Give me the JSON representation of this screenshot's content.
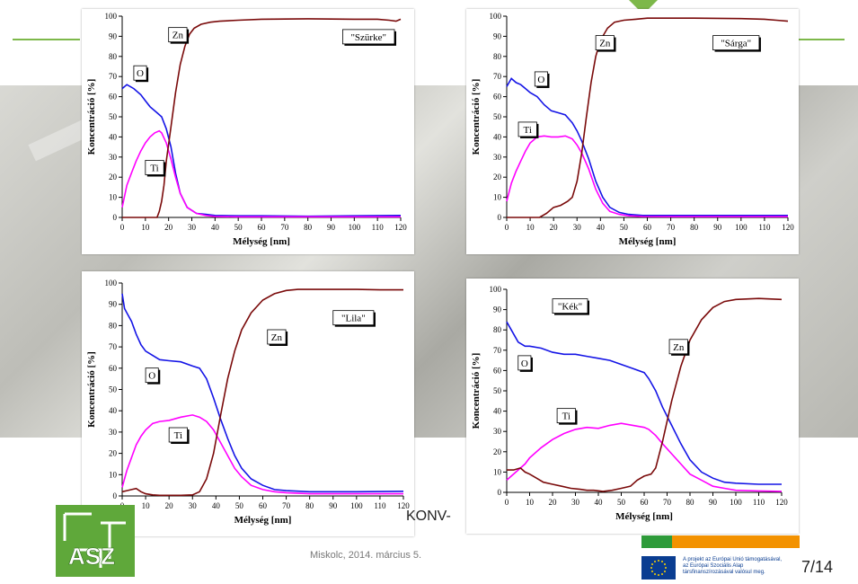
{
  "footer": {
    "date": "Miskolc, 2014. március 5.",
    "project_fragment": "KONV-",
    "page": "7/14"
  },
  "eu_notice": {
    "lines": [
      "A projekt az Európai Unió támogatásával,",
      "az Európai Szociális Alap",
      "társfinanszírozásával valósul meg."
    ]
  },
  "colors": {
    "O": "#1414e6",
    "Ti": "#ff00ff",
    "Zn": "#7a0a0a",
    "accent_green": "#7db84a"
  },
  "chart_data": [
    {
      "type": "line",
      "annotation": "\"Szürke\"",
      "xlabel": "Mélység [nm]",
      "ylabel": "Koncentráció [%]",
      "xlim": [
        0,
        120
      ],
      "ylim": [
        0,
        100
      ],
      "xticks": [
        0,
        10,
        20,
        30,
        40,
        50,
        60,
        70,
        80,
        90,
        100,
        110,
        120
      ],
      "yticks": [
        0,
        10,
        20,
        30,
        40,
        50,
        60,
        70,
        80,
        90,
        100
      ],
      "series": [
        {
          "name": "O",
          "x": [
            0,
            2,
            5,
            8,
            10,
            12,
            15,
            17,
            19,
            21,
            23,
            25,
            28,
            32,
            36,
            40,
            50,
            60,
            80,
            100,
            120
          ],
          "values": [
            64,
            66,
            64,
            61,
            58,
            55,
            52,
            50,
            44,
            35,
            22,
            12,
            5,
            2,
            1.5,
            1,
            0.8,
            0.8,
            0.6,
            0.8,
            1
          ]
        },
        {
          "name": "Ti",
          "x": [
            0,
            2,
            4,
            6,
            8,
            10,
            12,
            14,
            16,
            17,
            19,
            21,
            23,
            25,
            28,
            32,
            36,
            40,
            50,
            60,
            80,
            100,
            120
          ],
          "values": [
            5,
            16,
            22,
            28,
            33,
            37,
            40,
            42,
            43,
            42,
            37,
            29,
            20,
            12,
            5,
            2,
            1,
            0.5,
            0.3,
            0.3,
            0.3,
            0.3,
            0.3
          ]
        },
        {
          "name": "Zn",
          "x": [
            0,
            10,
            15,
            16,
            17,
            18,
            19,
            21,
            23,
            25,
            27,
            29,
            31,
            34,
            38,
            42,
            50,
            60,
            80,
            100,
            110,
            115,
            118,
            120
          ],
          "values": [
            0,
            0,
            0,
            3,
            8,
            16,
            28,
            45,
            62,
            76,
            85,
            91,
            94,
            96,
            97,
            97.5,
            98,
            98.5,
            98.7,
            98.5,
            98.5,
            98,
            97.5,
            98.5
          ]
        }
      ],
      "labels": [
        "O",
        "Ti",
        "Zn"
      ]
    },
    {
      "type": "line",
      "annotation": "\"Sárga\"",
      "xlabel": "Mélység [nm]",
      "ylabel": "Koncentráció [%]",
      "xlim": [
        0,
        120
      ],
      "ylim": [
        0,
        100
      ],
      "xticks": [
        0,
        10,
        20,
        30,
        40,
        50,
        60,
        70,
        80,
        90,
        100,
        110,
        120
      ],
      "yticks": [
        0,
        10,
        20,
        30,
        40,
        50,
        60,
        70,
        80,
        90,
        100
      ],
      "series": [
        {
          "name": "O",
          "x": [
            0,
            2,
            4,
            6,
            8,
            10,
            13,
            16,
            19,
            22,
            25,
            28,
            30,
            32,
            35,
            38,
            41,
            44,
            48,
            52,
            58,
            70,
            90,
            120
          ],
          "values": [
            65,
            69,
            67,
            66,
            64,
            62,
            60,
            56,
            53,
            52,
            51,
            47,
            43,
            38,
            29,
            18,
            10,
            5,
            2.5,
            1.5,
            1,
            1,
            1,
            1
          ]
        },
        {
          "name": "Ti",
          "x": [
            0,
            2,
            4,
            6,
            8,
            10,
            13,
            16,
            19,
            22,
            25,
            28,
            30,
            32,
            35,
            38,
            41,
            44,
            48,
            52,
            58,
            70,
            90,
            120
          ],
          "values": [
            8,
            17,
            23,
            28,
            33,
            37,
            40,
            40.5,
            40,
            40,
            40.5,
            39,
            36,
            32,
            24,
            14,
            7,
            3,
            1.5,
            0.8,
            0.5,
            0.4,
            0.4,
            0.4
          ]
        },
        {
          "name": "Zn",
          "x": [
            0,
            10,
            14,
            17,
            20,
            23,
            26,
            28,
            30,
            32,
            34,
            36,
            38,
            40,
            43,
            46,
            50,
            55,
            60,
            80,
            100,
            110,
            115,
            120
          ],
          "values": [
            0,
            0,
            0,
            2,
            5,
            6,
            8,
            10,
            18,
            32,
            50,
            67,
            80,
            88,
            94,
            97,
            98,
            98.5,
            99,
            99,
            98.8,
            98.5,
            98,
            97.5
          ]
        }
      ],
      "labels": [
        "O",
        "Ti",
        "Zn"
      ]
    },
    {
      "type": "line",
      "annotation": "\"Lila\"",
      "xlabel": "Mélység [nm]",
      "ylabel": "Koncentráció [%]",
      "xlim": [
        0,
        120
      ],
      "ylim": [
        0,
        100
      ],
      "xticks": [
        0,
        10,
        20,
        30,
        40,
        50,
        60,
        70,
        80,
        90,
        100,
        110,
        120
      ],
      "yticks": [
        0,
        10,
        20,
        30,
        40,
        50,
        60,
        70,
        80,
        90,
        100
      ],
      "series": [
        {
          "name": "O",
          "x": [
            0,
            1,
            2,
            4,
            6,
            8,
            10,
            13,
            16,
            20,
            25,
            30,
            33,
            36,
            39,
            42,
            45,
            48,
            51,
            55,
            60,
            65,
            70,
            80,
            100,
            120
          ],
          "values": [
            95,
            88,
            86,
            82,
            76,
            71,
            68,
            66,
            64,
            63.5,
            63,
            61,
            60,
            55,
            46,
            36,
            27,
            19,
            13,
            8,
            5,
            3,
            2.5,
            2,
            2,
            2.2
          ]
        },
        {
          "name": "Ti",
          "x": [
            0,
            1,
            2,
            4,
            6,
            8,
            10,
            13,
            16,
            20,
            25,
            30,
            33,
            36,
            39,
            42,
            45,
            48,
            51,
            55,
            60,
            65,
            70,
            80,
            100,
            120
          ],
          "values": [
            4,
            8,
            12,
            18,
            24,
            28,
            31,
            34,
            35,
            35.5,
            37,
            38,
            37,
            35,
            31,
            25,
            19,
            13,
            9,
            5,
            3,
            2,
            1.5,
            1,
            1,
            1
          ]
        },
        {
          "name": "Zn",
          "x": [
            0,
            2,
            4,
            6,
            8,
            10,
            13,
            16,
            20,
            25,
            30,
            33,
            36,
            39,
            42,
            45,
            48,
            51,
            55,
            60,
            65,
            70,
            75,
            80,
            90,
            100,
            110,
            120
          ],
          "values": [
            2,
            2.5,
            3,
            3.5,
            2,
            1,
            0.5,
            0.3,
            0.3,
            0.3,
            0.5,
            2,
            8,
            20,
            38,
            55,
            68,
            78,
            86,
            92,
            95,
            96.5,
            97,
            97,
            97,
            97,
            96.8,
            96.8
          ]
        }
      ],
      "labels": [
        "O",
        "Ti",
        "Zn"
      ]
    },
    {
      "type": "line",
      "annotation": "\"Kék\"",
      "xlabel": "Mélység [nm]",
      "ylabel": "Koncentráció [%]",
      "xlim": [
        0,
        120
      ],
      "ylim": [
        0,
        100
      ],
      "xticks": [
        0,
        10,
        20,
        30,
        40,
        50,
        60,
        70,
        80,
        90,
        100,
        110,
        120
      ],
      "yticks": [
        0,
        10,
        20,
        30,
        40,
        50,
        60,
        70,
        80,
        90,
        100
      ],
      "series": [
        {
          "name": "O",
          "x": [
            0,
            2,
            5,
            8,
            10,
            15,
            20,
            25,
            30,
            35,
            40,
            45,
            50,
            55,
            60,
            62,
            65,
            68,
            72,
            76,
            80,
            85,
            90,
            95,
            100,
            110,
            120
          ],
          "values": [
            84,
            80,
            74,
            72,
            72,
            71,
            69,
            68,
            68,
            67,
            66,
            65,
            63,
            61,
            59,
            56,
            50,
            42,
            33,
            24,
            16,
            10,
            7,
            5,
            4.5,
            4,
            4
          ]
        },
        {
          "name": "Ti",
          "x": [
            0,
            2,
            5,
            8,
            10,
            15,
            20,
            25,
            30,
            35,
            40,
            45,
            50,
            55,
            60,
            62,
            65,
            68,
            72,
            76,
            80,
            85,
            90,
            95,
            100,
            110,
            120
          ],
          "values": [
            6,
            8,
            11,
            14,
            17,
            22,
            26,
            29,
            31,
            32,
            31.5,
            33,
            34,
            33,
            32,
            31,
            28,
            24,
            19,
            14,
            9,
            6,
            3,
            2,
            1,
            0.7,
            0.5
          ]
        },
        {
          "name": "Zn",
          "x": [
            0,
            3,
            6,
            8,
            10,
            13,
            16,
            20,
            24,
            28,
            32,
            35,
            38,
            42,
            46,
            50,
            54,
            57,
            60,
            63,
            65,
            68,
            72,
            76,
            80,
            85,
            90,
            95,
            100,
            110,
            120
          ],
          "values": [
            11,
            11,
            12,
            10,
            9,
            7,
            5,
            4,
            3,
            2,
            1.5,
            1,
            1,
            0.5,
            1,
            2,
            3,
            6,
            8,
            9,
            12,
            25,
            45,
            62,
            75,
            85,
            91,
            94,
            95,
            95.5,
            95
          ]
        }
      ],
      "labels": [
        "O",
        "Ti",
        "Zn"
      ]
    }
  ]
}
